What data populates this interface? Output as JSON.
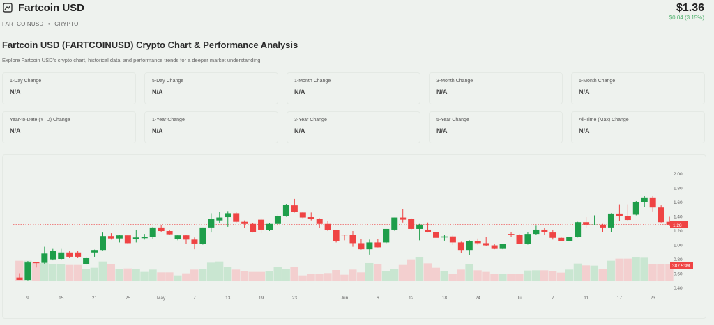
{
  "header": {
    "title": "Fartcoin USD",
    "icon": "chart-image-icon",
    "ticker": "FARTCOINUSD",
    "type": "CRYPTO",
    "separator": "•",
    "price": "$1.36",
    "change": "$0.04 (3.15%)",
    "change_color": "#4caf6a"
  },
  "section": {
    "heading": "Fartcoin USD (FARTCOINUSD) Crypto Chart & Performance Analysis",
    "description": "Explore Fartcoin USD's crypto chart, historical data, and performance trends for a deeper market understanding."
  },
  "stats": [
    {
      "label": "1-Day Change",
      "value": "N/A"
    },
    {
      "label": "5-Day Change",
      "value": "N/A"
    },
    {
      "label": "1-Month Change",
      "value": "N/A"
    },
    {
      "label": "3-Month Change",
      "value": "N/A"
    },
    {
      "label": "6-Month Change",
      "value": "N/A"
    },
    {
      "label": "Year-to-Date (YTD) Change",
      "value": "N/A"
    },
    {
      "label": "1-Year Change",
      "value": "N/A"
    },
    {
      "label": "3-Year Change",
      "value": "N/A"
    },
    {
      "label": "5-Year Change",
      "value": "N/A"
    },
    {
      "label": "All-Time (Max) Change",
      "value": "N/A"
    }
  ],
  "chart_data": {
    "type": "candlestick",
    "colors": {
      "up": "#1e9e4a",
      "down": "#ef4444",
      "up_volume": "#c9e6d1",
      "down_volume": "#f3cfcf"
    },
    "ylim": [
      0.4,
      2.0
    ],
    "yticks": [
      "2.00",
      "1.80",
      "1.60",
      "1.40",
      "1.20",
      "1.00",
      "0.80",
      "0.60",
      "0.40"
    ],
    "xticks": [
      {
        "i": 1,
        "label": "9"
      },
      {
        "i": 5,
        "label": "15"
      },
      {
        "i": 9,
        "label": "21"
      },
      {
        "i": 13,
        "label": "25"
      },
      {
        "i": 17,
        "label": "May"
      },
      {
        "i": 21,
        "label": "7"
      },
      {
        "i": 25,
        "label": "13"
      },
      {
        "i": 29,
        "label": "19"
      },
      {
        "i": 33,
        "label": "23"
      },
      {
        "i": 39,
        "label": "Jun"
      },
      {
        "i": 43,
        "label": "6"
      },
      {
        "i": 47,
        "label": "12"
      },
      {
        "i": 51,
        "label": "18"
      },
      {
        "i": 55,
        "label": "24"
      },
      {
        "i": 60,
        "label": "Jul"
      },
      {
        "i": 64,
        "label": "7"
      },
      {
        "i": 68,
        "label": "11"
      },
      {
        "i": 72,
        "label": "17"
      },
      {
        "i": 76,
        "label": "23"
      }
    ],
    "last_price": 1.28,
    "last_price_label": "1.28",
    "last_volume_label": "387.53M",
    "ohlc": [
      [
        0.54,
        0.6,
        0.5,
        0.505
      ],
      [
        0.5,
        0.77,
        0.49,
        0.75
      ],
      [
        0.752,
        0.76,
        0.68,
        0.74
      ],
      [
        0.745,
        0.97,
        0.73,
        0.875
      ],
      [
        0.794,
        0.94,
        0.78,
        0.908
      ],
      [
        0.8,
        0.94,
        0.79,
        0.89
      ],
      [
        0.89,
        0.91,
        0.81,
        0.83
      ],
      [
        0.89,
        0.91,
        0.81,
        0.83
      ],
      [
        0.73,
        0.82,
        0.72,
        0.81
      ],
      [
        0.89,
        0.93,
        0.83,
        0.925
      ],
      [
        0.925,
        1.17,
        0.92,
        1.12
      ],
      [
        1.12,
        1.16,
        1.07,
        1.086
      ],
      [
        1.086,
        1.14,
        1.03,
        1.13
      ],
      [
        1.13,
        1.14,
        1.01,
        1.02
      ],
      [
        1.08,
        1.21,
        1.03,
        1.1
      ],
      [
        1.09,
        1.15,
        1.07,
        1.11
      ],
      [
        1.11,
        1.25,
        1.08,
        1.24
      ],
      [
        1.24,
        1.27,
        1.18,
        1.19
      ],
      [
        1.19,
        1.21,
        1.14,
        1.145
      ],
      [
        1.08,
        1.14,
        1.06,
        1.13
      ],
      [
        1.13,
        1.14,
        1.01,
        1.07
      ],
      [
        1.07,
        1.1,
        0.935,
        1.015
      ],
      [
        1.01,
        1.24,
        1.0,
        1.24
      ],
      [
        1.24,
        1.44,
        1.17,
        1.36
      ],
      [
        1.34,
        1.46,
        1.3,
        1.38
      ],
      [
        1.385,
        1.47,
        1.25,
        1.44
      ],
      [
        1.44,
        1.46,
        1.31,
        1.32
      ],
      [
        1.32,
        1.34,
        1.23,
        1.29
      ],
      [
        1.29,
        1.3,
        1.17,
        1.18
      ],
      [
        1.35,
        1.37,
        1.16,
        1.21
      ],
      [
        1.2,
        1.3,
        1.19,
        1.29
      ],
      [
        1.29,
        1.43,
        1.28,
        1.4
      ],
      [
        1.4,
        1.57,
        1.39,
        1.56
      ],
      [
        1.55,
        1.64,
        1.45,
        1.46
      ],
      [
        1.45,
        1.46,
        1.37,
        1.38
      ],
      [
        1.385,
        1.45,
        1.34,
        1.356
      ],
      [
        1.36,
        1.37,
        1.23,
        1.29
      ],
      [
        1.29,
        1.33,
        1.19,
        1.2
      ],
      [
        1.2,
        1.21,
        1.03,
        1.047
      ],
      [
        1.14,
        1.14,
        1.06,
        1.135
      ],
      [
        1.14,
        1.19,
        0.97,
        1.02
      ],
      [
        1.02,
        1.08,
        0.93,
        0.935
      ],
      [
        0.935,
        1.07,
        0.86,
        1.03
      ],
      [
        1.03,
        1.08,
        0.96,
        0.962
      ],
      [
        1.03,
        1.22,
        1.02,
        1.22
      ],
      [
        1.21,
        1.38,
        1.195,
        1.38
      ],
      [
        1.38,
        1.5,
        1.31,
        1.35
      ],
      [
        1.356,
        1.37,
        1.21,
        1.22
      ],
      [
        1.22,
        1.29,
        1.06,
        1.28
      ],
      [
        1.21,
        1.31,
        1.17,
        1.175
      ],
      [
        1.18,
        1.19,
        1.09,
        1.095
      ],
      [
        1.1,
        1.14,
        1.055,
        1.115
      ],
      [
        1.115,
        1.13,
        0.995,
        1.03
      ],
      [
        1.03,
        1.04,
        0.88,
        0.925
      ],
      [
        0.925,
        1.06,
        0.855,
        1.045
      ],
      [
        1.045,
        1.085,
        1.0,
        1.02
      ],
      [
        1.02,
        1.11,
        0.98,
        0.99
      ],
      [
        0.99,
        1.01,
        0.935,
        0.94
      ],
      [
        0.94,
        1.01,
        0.935,
        1.005
      ],
      [
        1.15,
        1.18,
        1.11,
        1.135
      ],
      [
        1.135,
        1.145,
        1.005,
        1.01
      ],
      [
        1.01,
        1.18,
        1.0,
        1.15
      ],
      [
        1.15,
        1.265,
        1.14,
        1.21
      ],
      [
        1.21,
        1.23,
        1.135,
        1.175
      ],
      [
        1.17,
        1.21,
        1.07,
        1.095
      ],
      [
        1.095,
        1.11,
        1.045,
        1.05
      ],
      [
        1.05,
        1.11,
        1.045,
        1.105
      ],
      [
        1.105,
        1.32,
        1.1,
        1.315
      ],
      [
        1.315,
        1.385,
        1.24,
        1.28
      ],
      [
        1.275,
        1.41,
        1.27,
        1.28
      ],
      [
        1.28,
        1.29,
        1.175,
        1.24
      ],
      [
        1.24,
        1.44,
        1.18,
        1.435
      ],
      [
        1.435,
        1.565,
        1.33,
        1.4
      ],
      [
        1.4,
        1.565,
        1.33,
        1.346
      ],
      [
        1.42,
        1.61,
        1.41,
        1.6
      ],
      [
        1.6,
        1.68,
        1.525,
        1.66
      ],
      [
        1.66,
        1.68,
        1.465,
        1.52
      ],
      [
        1.52,
        1.55,
        1.31,
        1.315
      ],
      [
        1.32,
        1.39,
        1.26,
        1.28
      ]
    ],
    "volume_millions": [
      468,
      468,
      436,
      415,
      399,
      388,
      372,
      372,
      276,
      308,
      452,
      393,
      276,
      292,
      282,
      213,
      266,
      202,
      202,
      133,
      181,
      266,
      282,
      425,
      452,
      319,
      266,
      229,
      213,
      213,
      223,
      330,
      276,
      324,
      133,
      170,
      170,
      186,
      255,
      149,
      266,
      202,
      415,
      393,
      239,
      282,
      372,
      500,
      558,
      409,
      308,
      229,
      160,
      266,
      393,
      250,
      213,
      175,
      170,
      175,
      175,
      245,
      250,
      250,
      234,
      197,
      266,
      404,
      362,
      356,
      276,
      468,
      516,
      516,
      542,
      537,
      388,
      388,
      387.53
    ]
  }
}
